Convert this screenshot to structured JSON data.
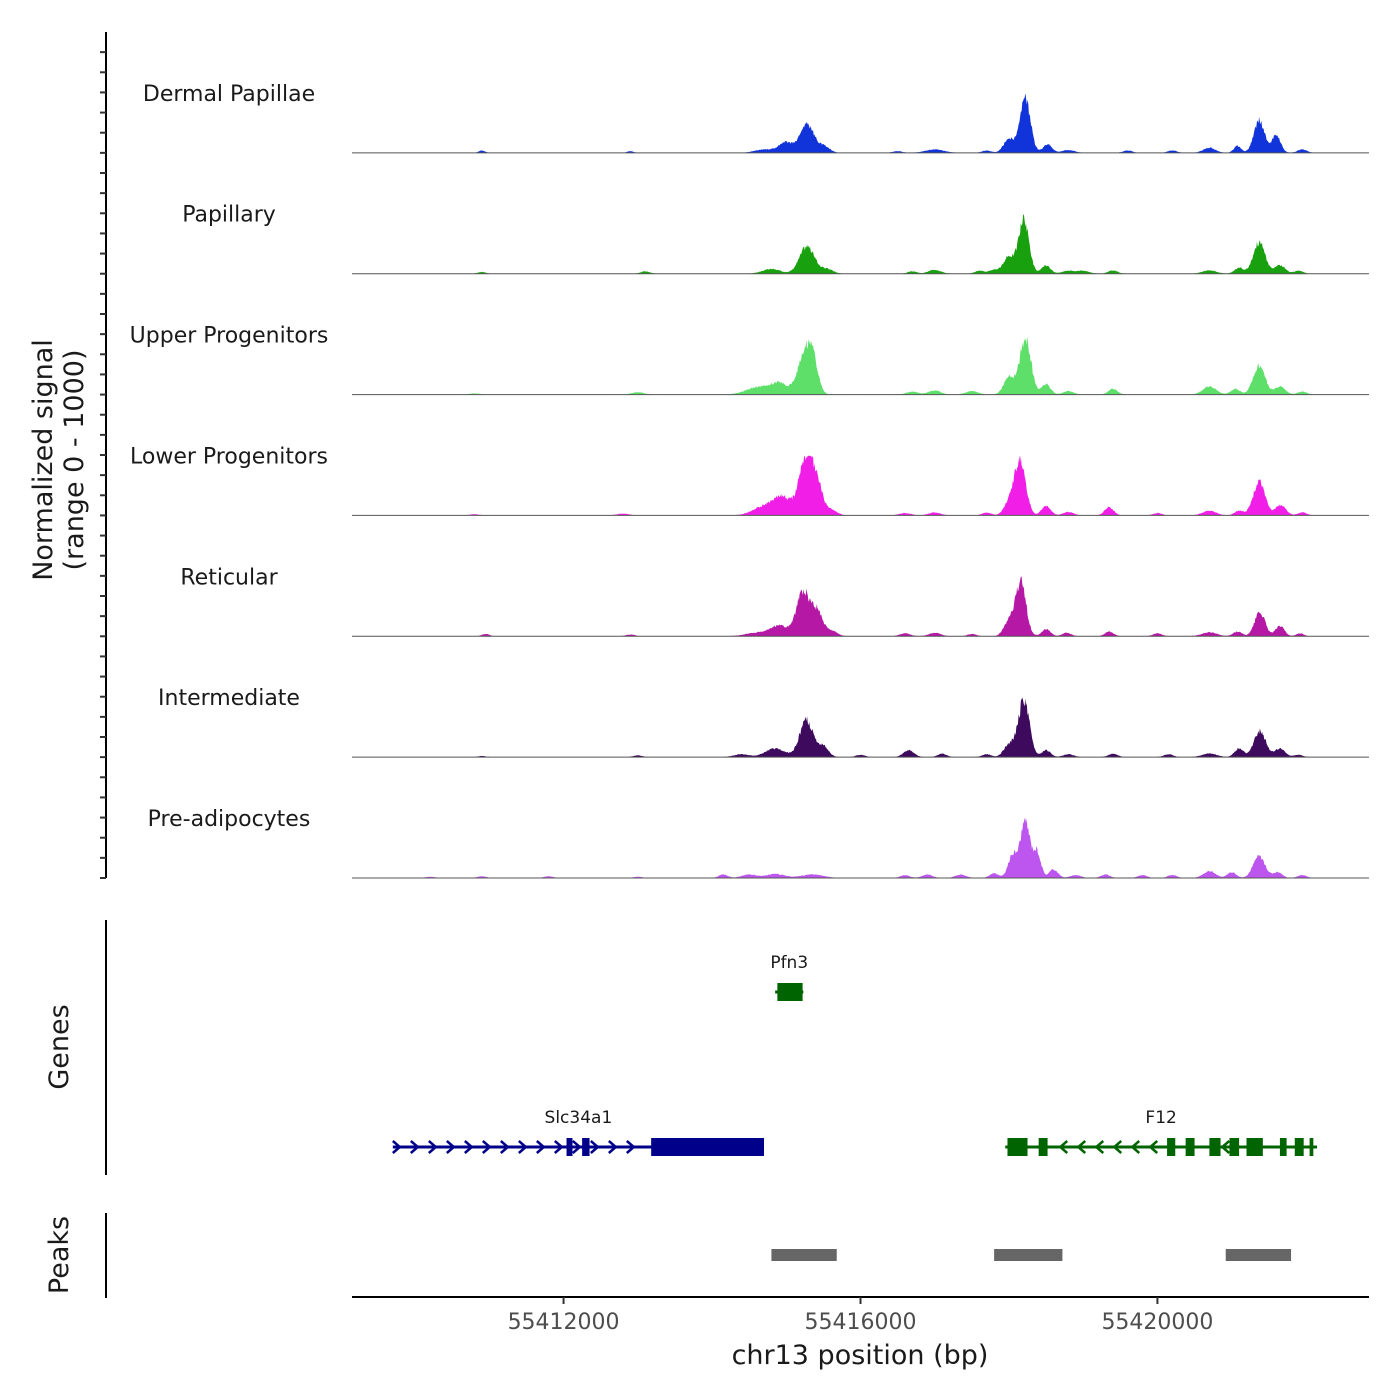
{
  "chart_data": {
    "type": "area",
    "chromosome": "chr13",
    "ylabel_line1": "Normalized signal",
    "ylabel_line2": "(range 0 - 1000)",
    "genes_label": "Genes",
    "peaks_label": "Peaks",
    "xlabel": "chr13 position (bp)",
    "xlim": [
      55409150,
      55422850
    ],
    "xticks": [
      {
        "value": 55412000,
        "label": "55412000"
      },
      {
        "value": 55416000,
        "label": "55416000"
      },
      {
        "value": 55420000,
        "label": "55420000"
      }
    ],
    "ylim": [
      0,
      1000
    ],
    "tracks": [
      {
        "name": "Dermal Papillae",
        "color": "#1034d9",
        "peaks": [
          [
            55410900,
            0.04,
            40
          ],
          [
            55412900,
            0.03,
            40
          ],
          [
            55414700,
            0.06,
            120
          ],
          [
            55415000,
            0.18,
            100
          ],
          [
            55415280,
            0.5,
            90
          ],
          [
            55415500,
            0.12,
            80
          ],
          [
            55416500,
            0.03,
            60
          ],
          [
            55417000,
            0.06,
            120
          ],
          [
            55417700,
            0.04,
            60
          ],
          [
            55418000,
            0.25,
            70
          ],
          [
            55418220,
            0.95,
            70
          ],
          [
            55418520,
            0.15,
            60
          ],
          [
            55418800,
            0.05,
            80
          ],
          [
            55419600,
            0.04,
            60
          ],
          [
            55420200,
            0.04,
            60
          ],
          [
            55420700,
            0.09,
            80
          ],
          [
            55421080,
            0.12,
            50
          ],
          [
            55421370,
            0.58,
            70
          ],
          [
            55421600,
            0.3,
            60
          ],
          [
            55421950,
            0.06,
            60
          ]
        ]
      },
      {
        "name": "Papillary",
        "color": "#19a00e",
        "peaks": [
          [
            55410900,
            0.03,
            50
          ],
          [
            55413100,
            0.04,
            60
          ],
          [
            55414800,
            0.08,
            120
          ],
          [
            55415280,
            0.48,
            100
          ],
          [
            55415550,
            0.08,
            80
          ],
          [
            55416700,
            0.04,
            60
          ],
          [
            55417000,
            0.07,
            80
          ],
          [
            55417600,
            0.05,
            60
          ],
          [
            55417800,
            0.07,
            70
          ],
          [
            55418000,
            0.3,
            70
          ],
          [
            55418200,
            0.95,
            70
          ],
          [
            55418500,
            0.14,
            60
          ],
          [
            55418800,
            0.05,
            80
          ],
          [
            55419000,
            0.05,
            80
          ],
          [
            55419400,
            0.06,
            60
          ],
          [
            55420700,
            0.06,
            90
          ],
          [
            55421100,
            0.1,
            60
          ],
          [
            55421370,
            0.55,
            80
          ],
          [
            55421650,
            0.15,
            70
          ],
          [
            55421900,
            0.05,
            60
          ]
        ]
      },
      {
        "name": "Upper Progenitors",
        "color": "#5ddf6a",
        "peaks": [
          [
            55410800,
            0.02,
            60
          ],
          [
            55413000,
            0.04,
            80
          ],
          [
            55414600,
            0.12,
            150
          ],
          [
            55414900,
            0.2,
            120
          ],
          [
            55415250,
            0.72,
            95
          ],
          [
            55415360,
            0.42,
            70
          ],
          [
            55416700,
            0.05,
            80
          ],
          [
            55417000,
            0.07,
            80
          ],
          [
            55417500,
            0.06,
            80
          ],
          [
            55418000,
            0.3,
            70
          ],
          [
            55418220,
            1.0,
            75
          ],
          [
            55418500,
            0.18,
            60
          ],
          [
            55418800,
            0.06,
            70
          ],
          [
            55419400,
            0.1,
            60
          ],
          [
            55420700,
            0.14,
            90
          ],
          [
            55421050,
            0.1,
            60
          ],
          [
            55421370,
            0.5,
            80
          ],
          [
            55421650,
            0.14,
            70
          ],
          [
            55421950,
            0.05,
            60
          ]
        ]
      },
      {
        "name": "Lower Progenitors",
        "color": "#f01ee6",
        "peaks": [
          [
            55410800,
            0.02,
            60
          ],
          [
            55412800,
            0.03,
            80
          ],
          [
            55414700,
            0.15,
            150
          ],
          [
            55414950,
            0.3,
            120
          ],
          [
            55415270,
            1.0,
            95
          ],
          [
            55415420,
            0.45,
            70
          ],
          [
            55415600,
            0.1,
            80
          ],
          [
            55416600,
            0.04,
            80
          ],
          [
            55417000,
            0.05,
            80
          ],
          [
            55417700,
            0.05,
            60
          ],
          [
            55418000,
            0.2,
            70
          ],
          [
            55418150,
            1.0,
            75
          ],
          [
            55418500,
            0.17,
            60
          ],
          [
            55418800,
            0.06,
            70
          ],
          [
            55419350,
            0.14,
            60
          ],
          [
            55420000,
            0.04,
            60
          ],
          [
            55420700,
            0.08,
            90
          ],
          [
            55421100,
            0.08,
            60
          ],
          [
            55421370,
            0.58,
            80
          ],
          [
            55421660,
            0.18,
            70
          ],
          [
            55421950,
            0.05,
            60
          ]
        ]
      },
      {
        "name": "Reticular",
        "color": "#b418a4",
        "peaks": [
          [
            55410950,
            0.04,
            50
          ],
          [
            55412900,
            0.03,
            60
          ],
          [
            55414600,
            0.06,
            150
          ],
          [
            55414900,
            0.18,
            120
          ],
          [
            55415230,
            0.8,
            90
          ],
          [
            55415420,
            0.4,
            70
          ],
          [
            55415600,
            0.1,
            80
          ],
          [
            55416600,
            0.05,
            70
          ],
          [
            55417000,
            0.06,
            80
          ],
          [
            55417500,
            0.04,
            60
          ],
          [
            55418000,
            0.25,
            70
          ],
          [
            55418160,
            0.95,
            70
          ],
          [
            55418500,
            0.12,
            60
          ],
          [
            55418780,
            0.06,
            60
          ],
          [
            55419350,
            0.08,
            60
          ],
          [
            55420000,
            0.05,
            60
          ],
          [
            55420700,
            0.07,
            100
          ],
          [
            55421080,
            0.08,
            60
          ],
          [
            55421380,
            0.42,
            70
          ],
          [
            55421650,
            0.18,
            60
          ],
          [
            55421920,
            0.05,
            50
          ]
        ]
      },
      {
        "name": "Intermediate",
        "color": "#3e0a5e",
        "peaks": [
          [
            55410900,
            0.02,
            50
          ],
          [
            55413000,
            0.03,
            60
          ],
          [
            55414400,
            0.05,
            100
          ],
          [
            55414850,
            0.15,
            130
          ],
          [
            55415270,
            0.65,
            90
          ],
          [
            55415500,
            0.18,
            70
          ],
          [
            55416000,
            0.04,
            60
          ],
          [
            55416650,
            0.12,
            70
          ],
          [
            55417100,
            0.06,
            60
          ],
          [
            55417700,
            0.05,
            60
          ],
          [
            55418000,
            0.22,
            70
          ],
          [
            55418200,
            1.0,
            75
          ],
          [
            55418500,
            0.12,
            60
          ],
          [
            55418800,
            0.05,
            70
          ],
          [
            55419400,
            0.06,
            60
          ],
          [
            55420150,
            0.05,
            60
          ],
          [
            55420700,
            0.06,
            100
          ],
          [
            55421100,
            0.15,
            60
          ],
          [
            55421380,
            0.45,
            80
          ],
          [
            55421650,
            0.15,
            70
          ],
          [
            55421900,
            0.04,
            60
          ]
        ]
      },
      {
        "name": "Pre-adipocytes",
        "color": "#bd55ef",
        "peaks": [
          [
            55410200,
            0.02,
            60
          ],
          [
            55410900,
            0.03,
            60
          ],
          [
            55411800,
            0.03,
            60
          ],
          [
            55413000,
            0.02,
            60
          ],
          [
            55414150,
            0.06,
            60
          ],
          [
            55414500,
            0.06,
            100
          ],
          [
            55414850,
            0.07,
            120
          ],
          [
            55415350,
            0.06,
            150
          ],
          [
            55416600,
            0.05,
            60
          ],
          [
            55416900,
            0.06,
            70
          ],
          [
            55417350,
            0.06,
            70
          ],
          [
            55417800,
            0.08,
            60
          ],
          [
            55418050,
            0.4,
            60
          ],
          [
            55418220,
            1.0,
            65
          ],
          [
            55418380,
            0.45,
            50
          ],
          [
            55418600,
            0.15,
            60
          ],
          [
            55418900,
            0.05,
            70
          ],
          [
            55419300,
            0.06,
            60
          ],
          [
            55419800,
            0.05,
            60
          ],
          [
            55420200,
            0.05,
            60
          ],
          [
            55420700,
            0.12,
            80
          ],
          [
            55421000,
            0.1,
            60
          ],
          [
            55421370,
            0.38,
            80
          ],
          [
            55421620,
            0.1,
            60
          ],
          [
            55421950,
            0.05,
            60
          ]
        ]
      }
    ],
    "genes": [
      {
        "name": "Pfn3",
        "strand": "-",
        "start": 55414850,
        "end": 55415230,
        "row": 0,
        "color": "#006400",
        "exons": [
          [
            55414880,
            55415220
          ]
        ]
      },
      {
        "name": "Slc34a1",
        "strand": "+",
        "start": 55409700,
        "end": 55414700,
        "row": 1,
        "color": "#00008b",
        "exons": [
          [
            55412040,
            55412120
          ],
          [
            55412250,
            55412350
          ],
          [
            55413180,
            55414700
          ]
        ]
      },
      {
        "name": "F12",
        "strand": "-",
        "start": 55417950,
        "end": 55422150,
        "row": 1,
        "color": "#006400",
        "exons": [
          [
            55417980,
            55418250
          ],
          [
            55418400,
            55418520
          ],
          [
            55420130,
            55420240
          ],
          [
            55420380,
            55420500
          ],
          [
            55420700,
            55420850
          ],
          [
            55420970,
            55421100
          ],
          [
            55421200,
            55421420
          ],
          [
            55421650,
            55421740
          ],
          [
            55421850,
            55421970
          ],
          [
            55422050,
            55422100
          ]
        ]
      }
    ],
    "peaks": [
      {
        "start": 55414800,
        "end": 55415680
      },
      {
        "start": 55417800,
        "end": 55418720
      },
      {
        "start": 55420920,
        "end": 55421800
      }
    ]
  }
}
